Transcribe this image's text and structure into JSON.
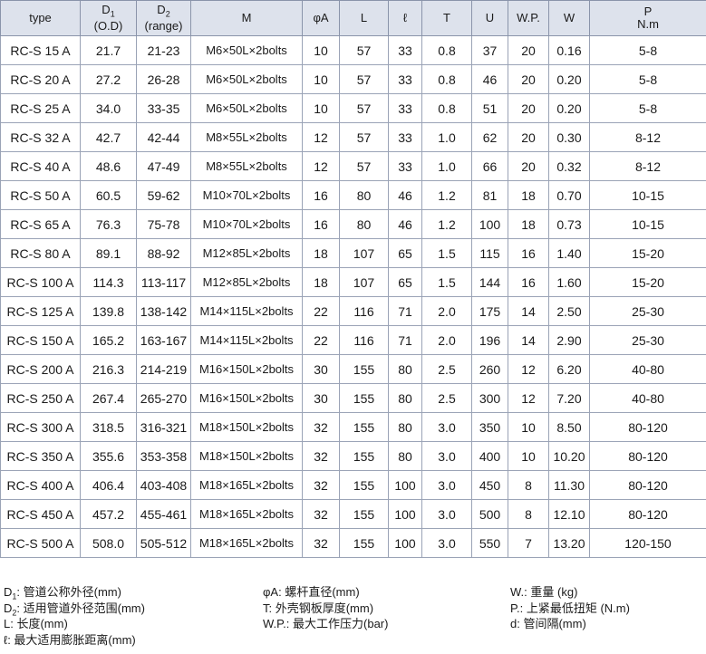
{
  "table": {
    "header": [
      {
        "text": "type"
      },
      {
        "text": "D",
        "sub": "1",
        "line2": "(O.D)"
      },
      {
        "text": "D",
        "sub": "2",
        "line2": "(range)"
      },
      {
        "text": "M"
      },
      {
        "text": "φA"
      },
      {
        "text": "L"
      },
      {
        "text": "ℓ"
      },
      {
        "text": "T"
      },
      {
        "text": "U"
      },
      {
        "text": "W.P."
      },
      {
        "text": "W"
      },
      {
        "text": "P",
        "line2": "N.m"
      }
    ],
    "rows": [
      [
        "RC-S 15 A",
        "21.7",
        "21-23",
        "M6×50L×2bolts",
        "10",
        "57",
        "33",
        "0.8",
        "37",
        "20",
        "0.16",
        "5-8"
      ],
      [
        "RC-S 20 A",
        "27.2",
        "26-28",
        "M6×50L×2bolts",
        "10",
        "57",
        "33",
        "0.8",
        "46",
        "20",
        "0.20",
        "5-8"
      ],
      [
        "RC-S 25 A",
        "34.0",
        "33-35",
        "M6×50L×2bolts",
        "10",
        "57",
        "33",
        "0.8",
        "51",
        "20",
        "0.20",
        "5-8"
      ],
      [
        "RC-S 32 A",
        "42.7",
        "42-44",
        "M8×55L×2bolts",
        "12",
        "57",
        "33",
        "1.0",
        "62",
        "20",
        "0.30",
        "8-12"
      ],
      [
        "RC-S 40 A",
        "48.6",
        "47-49",
        "M8×55L×2bolts",
        "12",
        "57",
        "33",
        "1.0",
        "66",
        "20",
        "0.32",
        "8-12"
      ],
      [
        "RC-S 50 A",
        "60.5",
        "59-62",
        "M10×70L×2bolts",
        "16",
        "80",
        "46",
        "1.2",
        "81",
        "18",
        "0.70",
        "10-15"
      ],
      [
        "RC-S 65 A",
        "76.3",
        "75-78",
        "M10×70L×2bolts",
        "16",
        "80",
        "46",
        "1.2",
        "100",
        "18",
        "0.73",
        "10-15"
      ],
      [
        "RC-S 80 A",
        "89.1",
        "88-92",
        "M12×85L×2bolts",
        "18",
        "107",
        "65",
        "1.5",
        "115",
        "16",
        "1.40",
        "15-20"
      ],
      [
        "RC-S 100 A",
        "114.3",
        "113-117",
        "M12×85L×2bolts",
        "18",
        "107",
        "65",
        "1.5",
        "144",
        "16",
        "1.60",
        "15-20"
      ],
      [
        "RC-S 125 A",
        "139.8",
        "138-142",
        "M14×115L×2bolts",
        "22",
        "116",
        "71",
        "2.0",
        "175",
        "14",
        "2.50",
        "25-30"
      ],
      [
        "RC-S 150 A",
        "165.2",
        "163-167",
        "M14×115L×2bolts",
        "22",
        "116",
        "71",
        "2.0",
        "196",
        "14",
        "2.90",
        "25-30"
      ],
      [
        "RC-S 200 A",
        "216.3",
        "214-219",
        "M16×150L×2bolts",
        "30",
        "155",
        "80",
        "2.5",
        "260",
        "12",
        "6.20",
        "40-80"
      ],
      [
        "RC-S 250 A",
        "267.4",
        "265-270",
        "M16×150L×2bolts",
        "30",
        "155",
        "80",
        "2.5",
        "300",
        "12",
        "7.20",
        "40-80"
      ],
      [
        "RC-S 300 A",
        "318.5",
        "316-321",
        "M18×150L×2bolts",
        "32",
        "155",
        "80",
        "3.0",
        "350",
        "10",
        "8.50",
        "80-120"
      ],
      [
        "RC-S 350 A",
        "355.6",
        "353-358",
        "M18×150L×2bolts",
        "32",
        "155",
        "80",
        "3.0",
        "400",
        "10",
        "10.20",
        "80-120"
      ],
      [
        "RC-S 400 A",
        "406.4",
        "403-408",
        "M18×165L×2bolts",
        "32",
        "155",
        "100",
        "3.0",
        "450",
        "8",
        "11.30",
        "80-120"
      ],
      [
        "RC-S 450 A",
        "457.2",
        "455-461",
        "M18×165L×2bolts",
        "32",
        "155",
        "100",
        "3.0",
        "500",
        "8",
        "12.10",
        "80-120"
      ],
      [
        "RC-S 500 A",
        "508.0",
        "505-512",
        "M18×165L×2bolts",
        "32",
        "155",
        "100",
        "3.0",
        "550",
        "7",
        "13.20",
        "120-150"
      ]
    ]
  },
  "legend": [
    [
      {
        "symbol": "D",
        "sub": "1",
        "desc": ": 管道公称外径(mm)"
      },
      {
        "symbol": "D",
        "sub": "2",
        "desc": ": 适用管道外径范围(mm)"
      },
      {
        "symbol": "L",
        "desc": ": 长度(mm)"
      },
      {
        "symbol": "ℓ",
        "desc": ": 最大适用膨胀距离(mm)"
      }
    ],
    [
      {
        "symbol": "φA",
        "desc": ": 螺杆直径(mm)"
      },
      {
        "symbol": "T",
        "desc": ": 外壳钢板厚度(mm)"
      },
      {
        "symbol": "W.P.",
        "desc": ": 最大工作压力(bar)"
      }
    ],
    [
      {
        "symbol": "W.",
        "desc": ": 重量 (kg)"
      },
      {
        "symbol": "P.",
        "desc": ": 上紧最低扭矩 (N.m)"
      },
      {
        "symbol": "d",
        "desc": ": 管间隔(mm)"
      }
    ]
  ]
}
